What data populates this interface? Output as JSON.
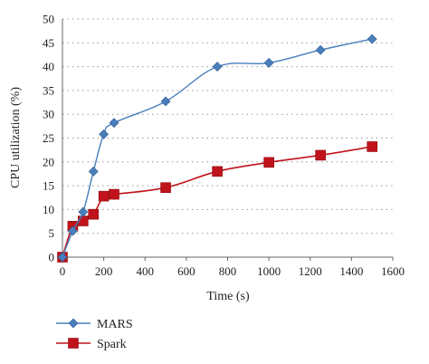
{
  "chart_data": {
    "type": "line",
    "title": "",
    "xlabel": "Time (s)",
    "ylabel": "CPU utilization (%)",
    "xlim": [
      0,
      1600
    ],
    "ylim": [
      0,
      50
    ],
    "xticks": [
      0,
      200,
      400,
      600,
      800,
      1000,
      1200,
      1400,
      1600
    ],
    "yticks": [
      0,
      5,
      10,
      15,
      20,
      25,
      30,
      35,
      40,
      45,
      50
    ],
    "grid": "horizontal-dotted",
    "legend_position": "bottom-left",
    "series": [
      {
        "name": "MARS",
        "color": "#4a7ebb",
        "marker": "diamond",
        "x": [
          0,
          50,
          100,
          150,
          200,
          250,
          500,
          750,
          1000,
          1250,
          1500
        ],
        "y": [
          0,
          5.5,
          9.5,
          18,
          25.8,
          28.2,
          32.7,
          40,
          40.8,
          43.5,
          45.8
        ]
      },
      {
        "name": "Spark",
        "color": "#c0131b",
        "marker": "square",
        "x": [
          0,
          50,
          100,
          150,
          200,
          250,
          500,
          750,
          1000,
          1250,
          1500
        ],
        "y": [
          0,
          6.5,
          7.6,
          9,
          12.8,
          13.2,
          14.6,
          18,
          19.9,
          21.4,
          23.2
        ]
      }
    ]
  }
}
